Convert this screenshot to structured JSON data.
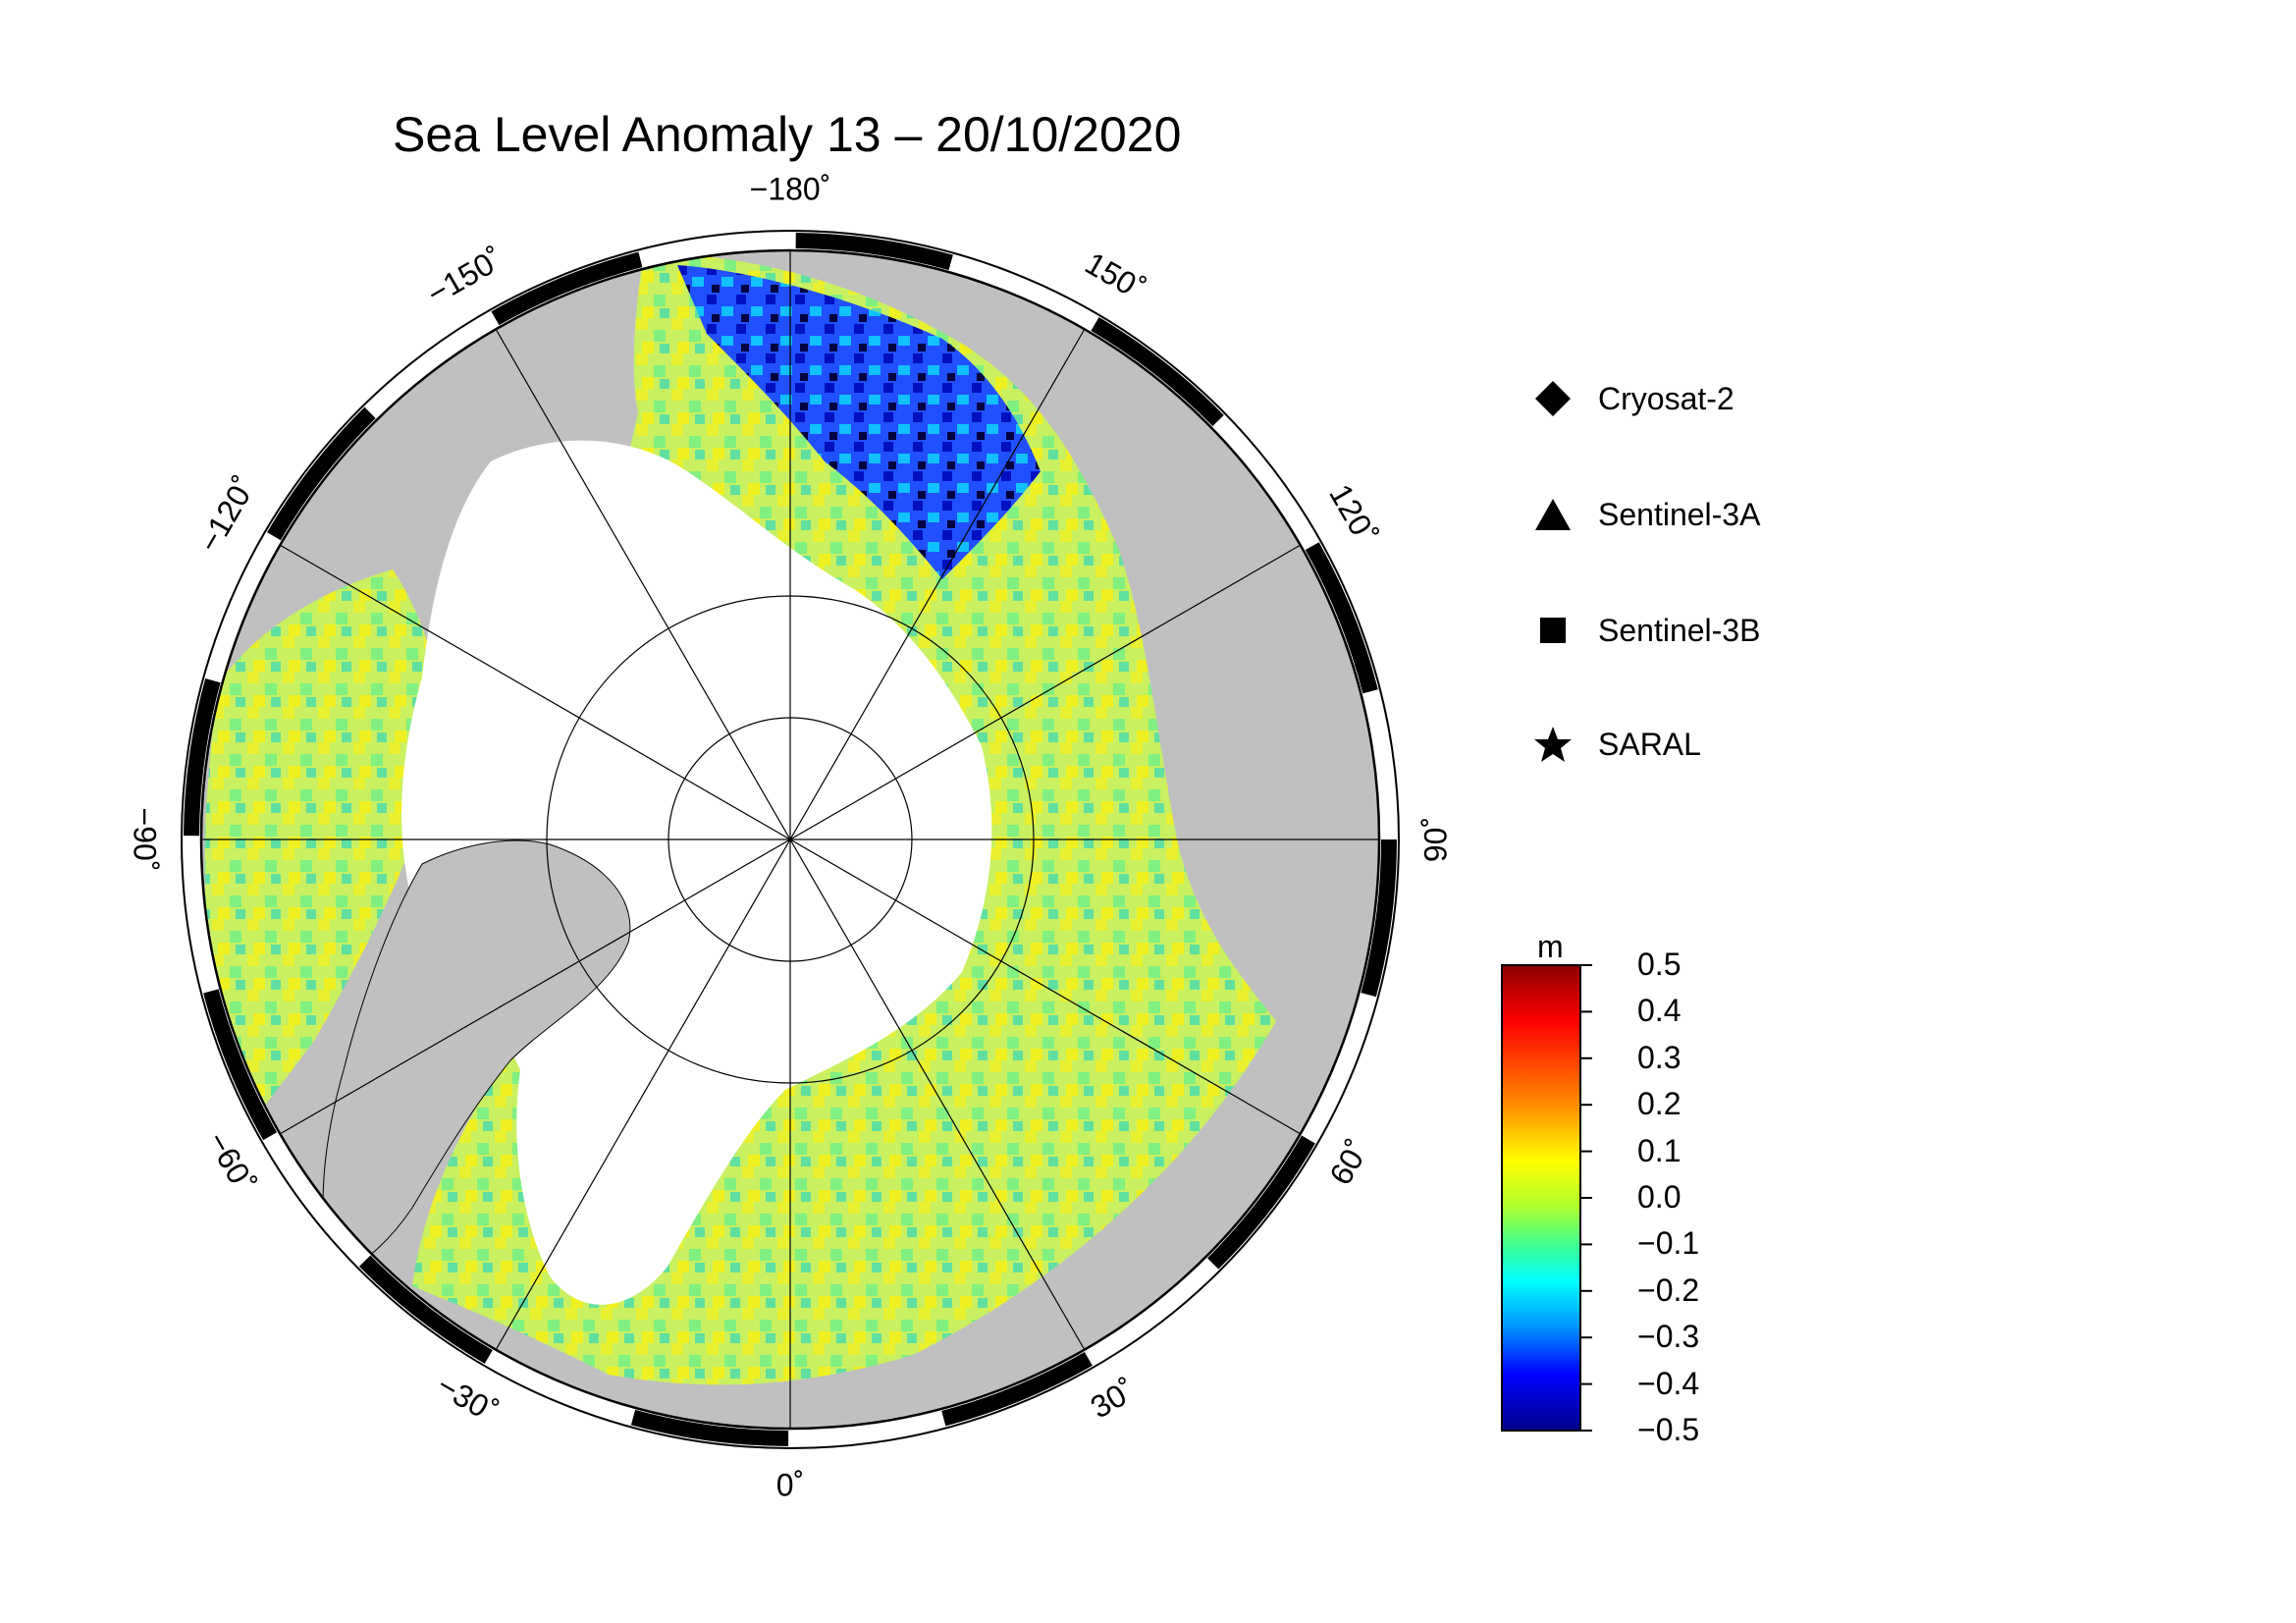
{
  "title": "Sea Level Anomaly 13 – 20/10/2020",
  "map": {
    "projection": "polar-stereographic-north",
    "longitude_labels": [
      {
        "lon": -180,
        "text": "−180˚"
      },
      {
        "lon": 150,
        "text": "150˚"
      },
      {
        "lon": 120,
        "text": "120˚"
      },
      {
        "lon": 90,
        "text": "90˚"
      },
      {
        "lon": 60,
        "text": "60˚"
      },
      {
        "lon": 30,
        "text": "30˚"
      },
      {
        "lon": 0,
        "text": "0˚"
      },
      {
        "lon": -30,
        "text": "−30˚"
      },
      {
        "lon": -60,
        "text": "−60˚"
      },
      {
        "lon": -90,
        "text": "−90˚"
      },
      {
        "lon": -120,
        "text": "−120˚"
      },
      {
        "lon": -150,
        "text": "−150˚"
      }
    ],
    "colors": {
      "land": "#c0c0c0",
      "sea_ice": "#ffffff",
      "grid": "#000000"
    }
  },
  "legend": {
    "items": [
      {
        "symbol": "diamond",
        "label": "Cryosat-2"
      },
      {
        "symbol": "triangle",
        "label": "Sentinel-3A"
      },
      {
        "symbol": "square",
        "label": "Sentinel-3B"
      },
      {
        "symbol": "star",
        "label": "SARAL"
      }
    ]
  },
  "colorbar": {
    "unit": "m",
    "min": -0.5,
    "max": 0.5,
    "ticks": [
      "0.5",
      "0.4",
      "0.3",
      "0.2",
      "0.1",
      "0.0",
      "−0.1",
      "−0.2",
      "−0.3",
      "−0.4",
      "−0.5"
    ],
    "colors": [
      "#8b0000",
      "#ff0000",
      "#ff8c00",
      "#ffff00",
      "#adff2f",
      "#00ffff",
      "#0080ff",
      "#0000ff",
      "#00008b"
    ]
  }
}
